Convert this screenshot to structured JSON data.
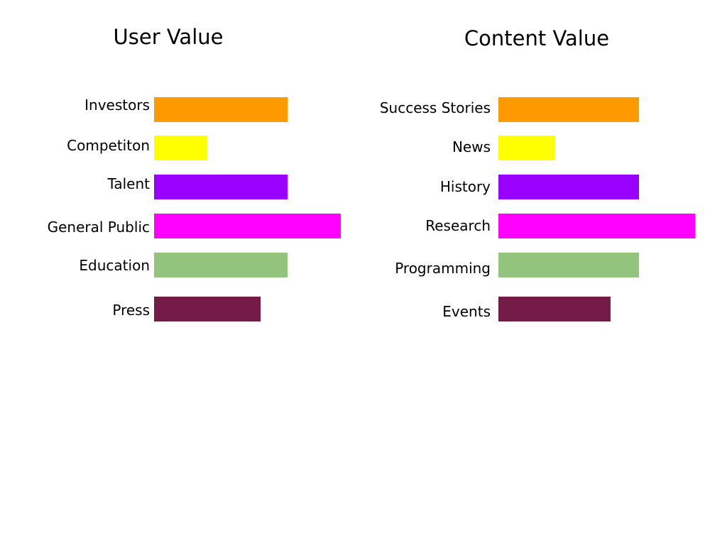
{
  "chart_data": [
    {
      "type": "bar",
      "orientation": "horizontal",
      "title": "User Value",
      "categories": [
        "Investors",
        "Competiton",
        "Talent",
        "General Public",
        "Education",
        "Press"
      ],
      "values": [
        5,
        2,
        5,
        7,
        5,
        4
      ],
      "colors": [
        "#FF9900",
        "#FFFF00",
        "#9900FF",
        "#FF00FF",
        "#93C47D",
        "#741B47"
      ],
      "xlim": [
        0,
        7
      ],
      "grid": false,
      "legend": "none"
    },
    {
      "type": "bar",
      "orientation": "horizontal",
      "title": "Content Value",
      "categories": [
        "Success Stories",
        "News",
        "History",
        "Research",
        "Programming",
        "Events"
      ],
      "values": [
        5,
        2,
        5,
        7,
        5,
        4
      ],
      "colors": [
        "#FF9900",
        "#FFFF00",
        "#9900FF",
        "#FF00FF",
        "#93C47D",
        "#741B47"
      ],
      "xlim": [
        0,
        7
      ],
      "grid": false,
      "legend": "none"
    }
  ]
}
